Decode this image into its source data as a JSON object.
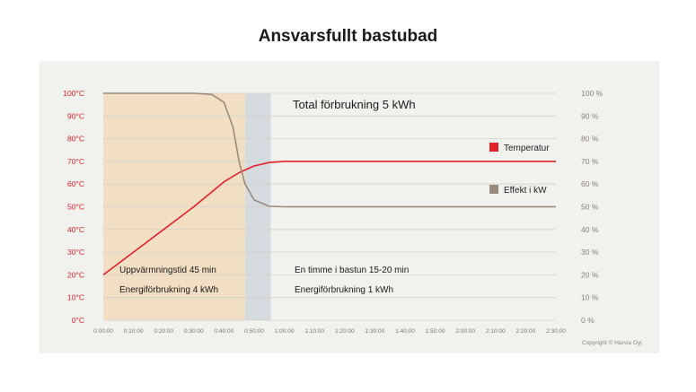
{
  "page": {
    "title": "Ansvarsfullt bastubad",
    "copyright": "Copyright © Harvia Oyj"
  },
  "chart_data": {
    "type": "line",
    "title": "Ansvarsfullt bastubad",
    "x_ticks": [
      "0:00:00",
      "0:10:00",
      "0:20:00",
      "0:30:00",
      "0:40:00",
      "0:50:00",
      "1:00:00",
      "1:10:00",
      "1:20:00",
      "1:30:00",
      "1:40:00",
      "1:50:00",
      "2:00:00",
      "2:10:00",
      "2:20:00",
      "2:30:00"
    ],
    "x_minutes": [
      0,
      10,
      20,
      30,
      40,
      50,
      60,
      70,
      80,
      90,
      100,
      110,
      120,
      130,
      140,
      150
    ],
    "xlim": [
      0,
      150
    ],
    "y_left": {
      "ticks": [
        "0°C",
        "10°C",
        "20°C",
        "30°C",
        "40°C",
        "50°C",
        "60°C",
        "70°C",
        "80°C",
        "90°C",
        "100°C"
      ],
      "ylim": [
        0,
        100
      ],
      "color": "#e3212b"
    },
    "y_right": {
      "ticks": [
        "0 %",
        "10 %",
        "20 %",
        "30 %",
        "40 %",
        "50 %",
        "60 %",
        "70 %",
        "80 %",
        "90 %",
        "100 %"
      ],
      "ylim": [
        0,
        100
      ],
      "color": "#8a7f76"
    },
    "grid": true,
    "series": [
      {
        "name": "Temperatur",
        "color": "#e3212b",
        "x": [
          0,
          10,
          20,
          30,
          40,
          45,
          50,
          55,
          60,
          150
        ],
        "y": [
          20,
          30,
          40,
          50,
          61,
          65,
          68,
          69.5,
          70,
          70
        ]
      },
      {
        "name": "Effekt i kW",
        "color": "#9a8a7c",
        "x": [
          0,
          30,
          36,
          40,
          43,
          45,
          47,
          50,
          55,
          60,
          150
        ],
        "y": [
          100,
          100,
          99.5,
          96,
          85,
          70,
          60,
          53,
          50.2,
          50,
          50
        ]
      }
    ],
    "legend": {
      "placement": "right"
    },
    "regions": [
      {
        "label": "heating",
        "x": [
          0,
          47
        ],
        "color": "#f2dfc3"
      },
      {
        "label": "transition",
        "x": [
          47,
          55.5
        ],
        "color": "#d6dbe0"
      }
    ],
    "annotations": {
      "total": "Total förbrukning 5 kWh",
      "heat_time": "Uppvärmningstid 45 min",
      "heat_energy": "Energiförbrukning 4 kWh",
      "bath_time": "En timme i bastun 15-20 min",
      "bath_energy": "Energiförbrukning 1 kWh"
    }
  }
}
